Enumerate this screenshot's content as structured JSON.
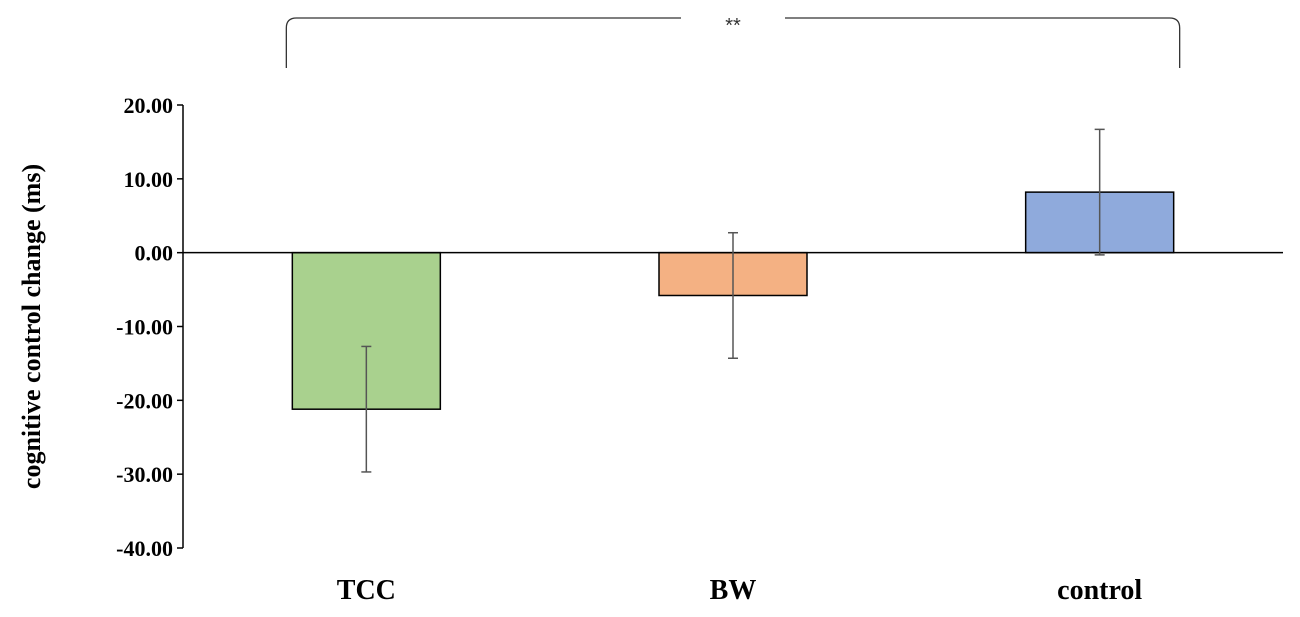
{
  "chart_data": {
    "type": "bar",
    "title": "",
    "xlabel": "",
    "ylabel": "cognitive control change (ms)",
    "ylim": [
      -40,
      20
    ],
    "ytick_step": 10,
    "ytick_format_decimals": 2,
    "categories": [
      "TCC",
      "BW",
      "control"
    ],
    "values": [
      -21.2,
      -5.8,
      8.2
    ],
    "errors": [
      8.5,
      8.5,
      8.5
    ],
    "colors": [
      "#a9d18e",
      "#f4b183",
      "#8faadc"
    ],
    "bar_edge_color": "#000000",
    "error_bar_color": "#555555",
    "grid": false,
    "legend": "none",
    "significance": {
      "label": "**",
      "from_category": "TCC",
      "to_category": "control"
    }
  }
}
